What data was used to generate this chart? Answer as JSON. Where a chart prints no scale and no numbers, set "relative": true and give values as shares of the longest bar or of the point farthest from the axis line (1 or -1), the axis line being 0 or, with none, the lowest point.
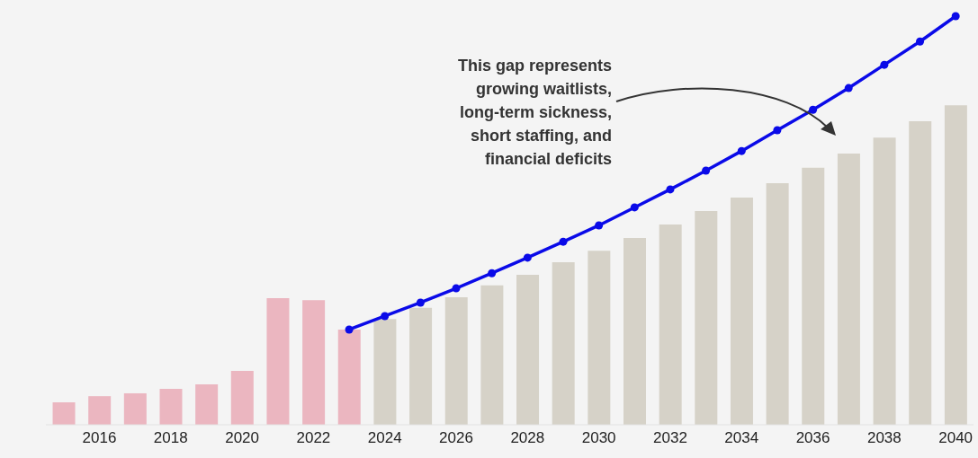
{
  "chart_data": {
    "type": "bar",
    "relative": true,
    "marker": "circle",
    "line_style": "solid",
    "categories": [
      null,
      "2016",
      null,
      "2018",
      null,
      "2020",
      null,
      "2022",
      null,
      "2024",
      null,
      "2026",
      null,
      "2028",
      null,
      "2030",
      null,
      "2032",
      null,
      "2034",
      null,
      "2036",
      null,
      "2038",
      null,
      "2040"
    ],
    "series": [
      {
        "colors": [
          "#ebb6c0",
          "#ebb6c0",
          "#ebb6c0",
          "#ebb6c0",
          "#ebb6c0",
          "#ebb6c0",
          "#ebb6c0",
          "#ebb6c0",
          "#ebb6c0",
          "#d6d2c8",
          "#d6d2c8",
          "#d6d2c8",
          "#d6d2c8",
          "#d6d2c8",
          "#d6d2c8",
          "#d6d2c8",
          "#d6d2c8",
          "#d6d2c8",
          "#d6d2c8",
          "#d6d2c8",
          "#d6d2c8",
          "#d6d2c8",
          "#d6d2c8",
          "#d6d2c8",
          "#d6d2c8",
          "#d6d2c8"
        ],
        "values": [
          0.055,
          0.07,
          0.077,
          0.088,
          0.099,
          0.132,
          0.31,
          0.305,
          0.233,
          0.259,
          0.286,
          0.312,
          0.341,
          0.367,
          0.398,
          0.426,
          0.457,
          0.49,
          0.523,
          0.556,
          0.591,
          0.629,
          0.664,
          0.703,
          0.743,
          0.782
        ]
      },
      {
        "type": "line",
        "color": "#0a0ae8",
        "values": [
          null,
          null,
          null,
          null,
          null,
          null,
          null,
          null,
          0.233,
          0.266,
          0.299,
          0.334,
          0.371,
          0.409,
          0.448,
          0.488,
          0.532,
          0.576,
          0.622,
          0.67,
          0.721,
          0.771,
          0.824,
          0.881,
          0.938,
          1
        ]
      }
    ],
    "annotations": [
      "This gap represents\ngrowing waitlists,\nlong-term sickness,\nshort staffing, and\nfinancial deficits"
    ]
  }
}
